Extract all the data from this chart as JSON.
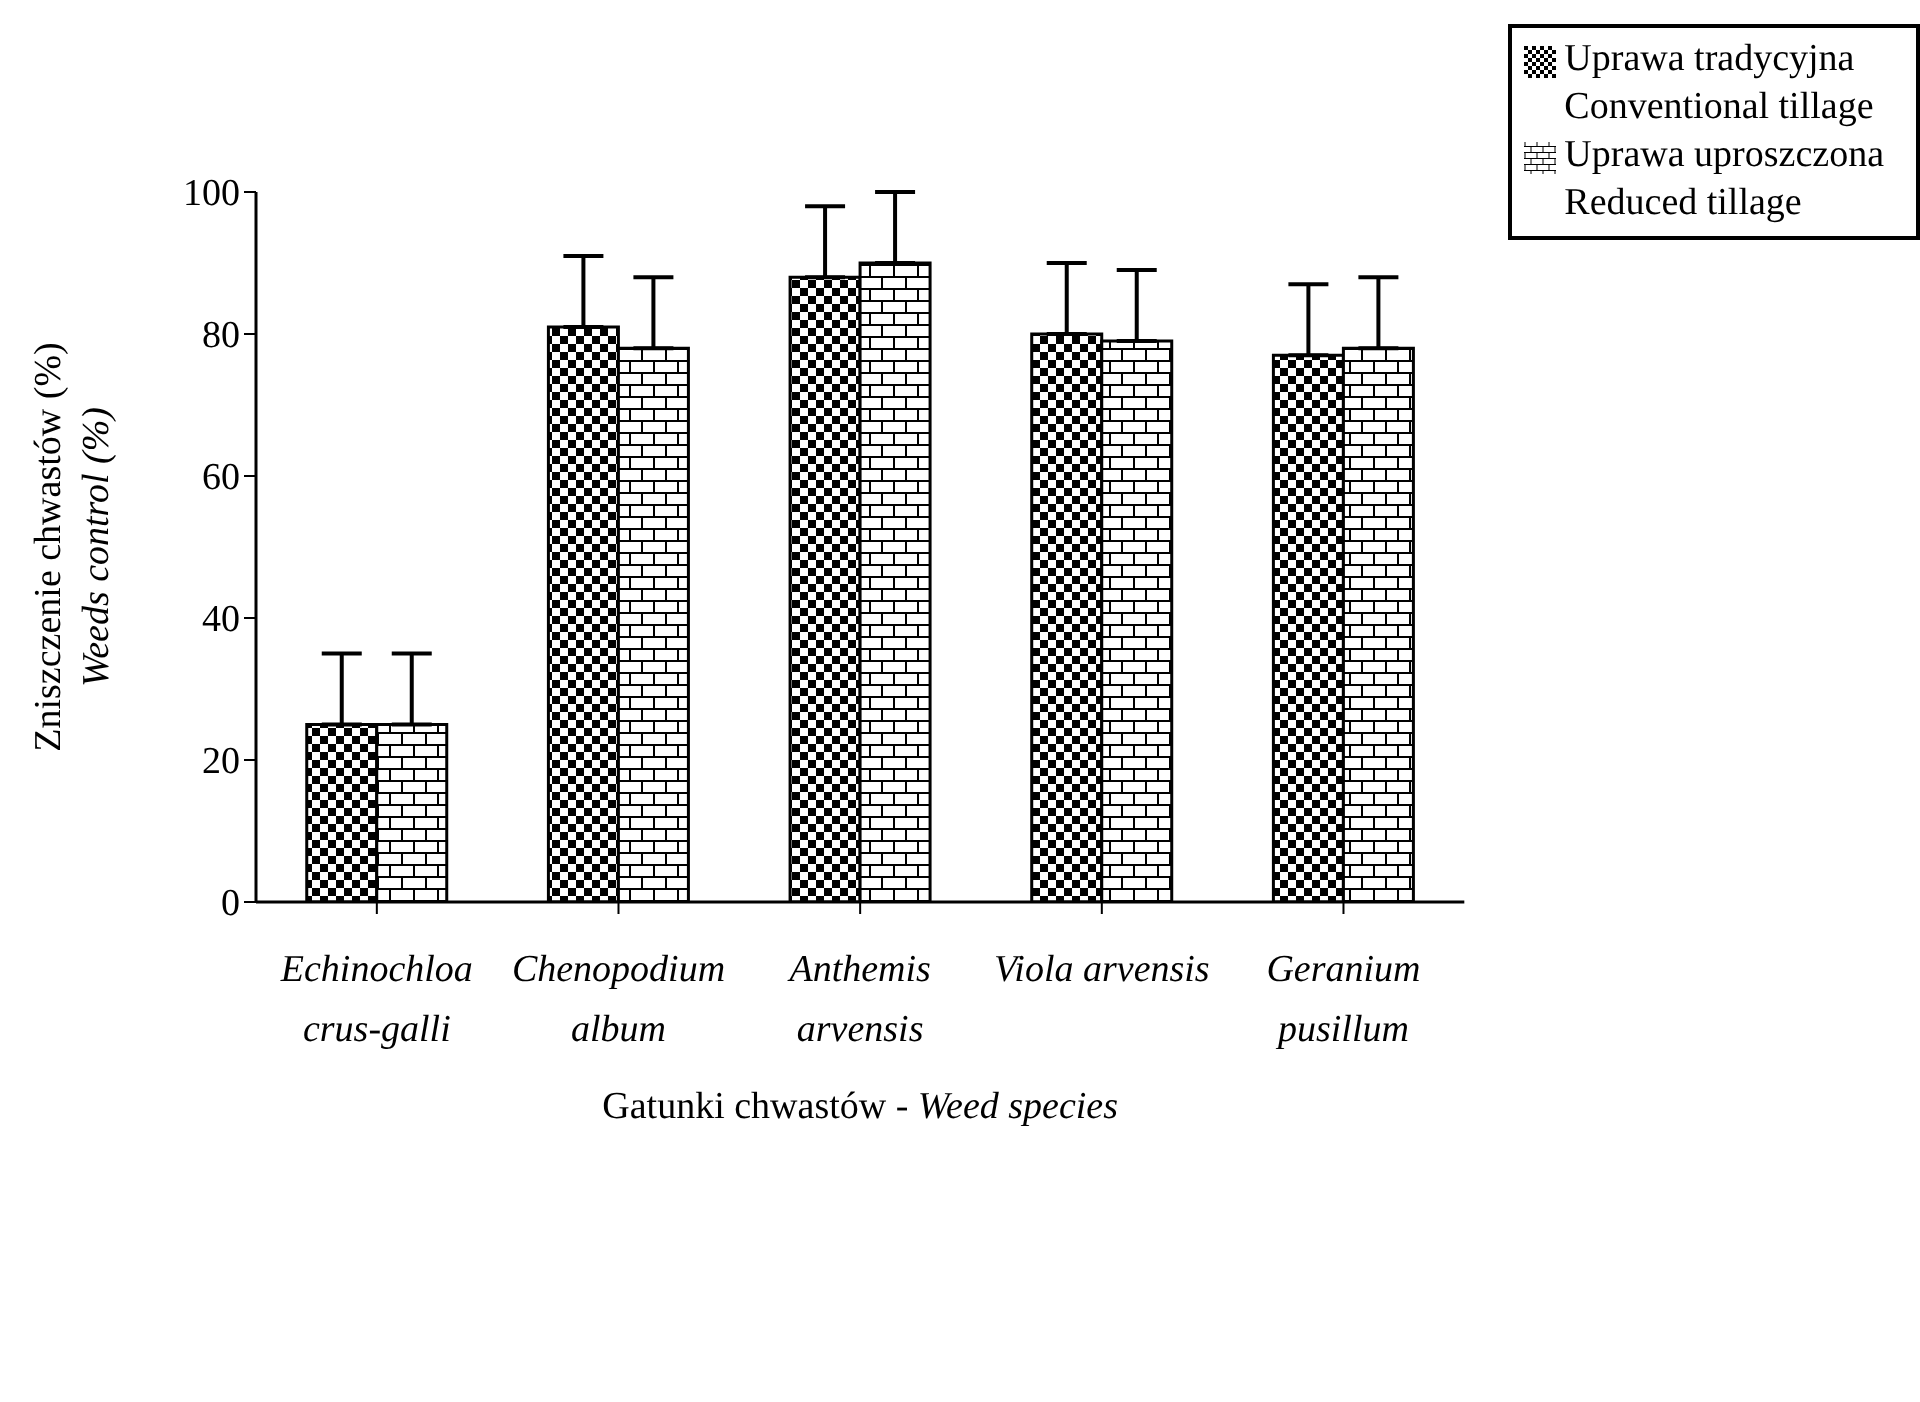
{
  "chart_data": {
    "type": "bar",
    "xlabel": "Gatunki chwastów - Weed species",
    "ylabel": "Zniszczenie chwastów (%)\nWeeds control (%)",
    "categories": [
      "Echinochloa crus-galli",
      "Chenopodium album",
      "Anthemis arvensis",
      "Viola arvensis",
      "Geranium pusillum"
    ],
    "series": [
      {
        "name": "Uprawa tradycyjna\nConventional tillage",
        "color": "#000000",
        "values": [
          25,
          81,
          88,
          80,
          77
        ],
        "errors": [
          [
            25,
            35
          ],
          [
            81,
            91
          ],
          [
            88,
            98
          ],
          [
            80,
            90
          ],
          [
            77,
            87
          ]
        ]
      },
      {
        "name": "Uprawa uproszczona\nReduced tillage",
        "color": "#000000",
        "values": [
          25,
          78,
          90,
          79,
          78
        ],
        "errors": [
          [
            25,
            35
          ],
          [
            78,
            88
          ],
          [
            90,
            100
          ],
          [
            79,
            89
          ],
          [
            78,
            88
          ]
        ]
      }
    ],
    "ylim": [
      0,
      100
    ],
    "yticks": [
      0,
      20,
      40,
      60,
      80,
      100
    ],
    "grid": false,
    "legend": "top right"
  }
}
